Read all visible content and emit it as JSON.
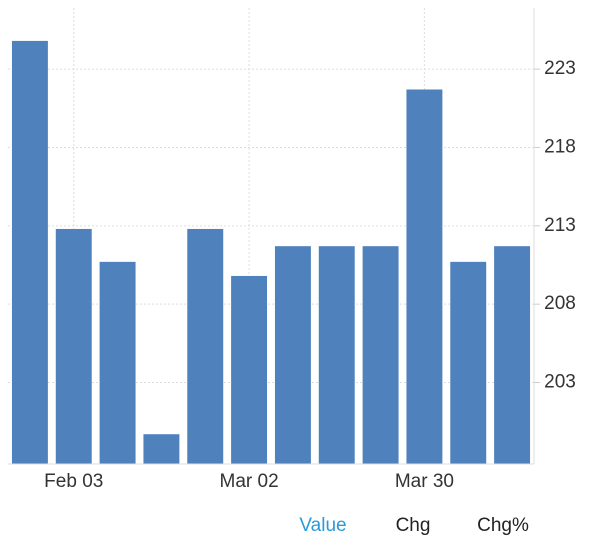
{
  "chart_data": {
    "type": "bar",
    "categories": [
      null,
      "Feb 03",
      null,
      null,
      null,
      "Mar 02",
      null,
      null,
      null,
      "Mar 30",
      null,
      null
    ],
    "values": [
      224.8,
      212.8,
      210.7,
      199.7,
      212.8,
      209.8,
      211.7,
      211.7,
      211.7,
      221.7,
      210.7,
      211.7
    ],
    "color": "#4f81bd",
    "ylim": [
      197.8,
      226.9
    ],
    "yticks": [
      203,
      208,
      213,
      218,
      223
    ],
    "grid": true
  },
  "controls": {
    "buttons": [
      "Value",
      "Chg",
      "Chg%"
    ],
    "active": 0
  }
}
